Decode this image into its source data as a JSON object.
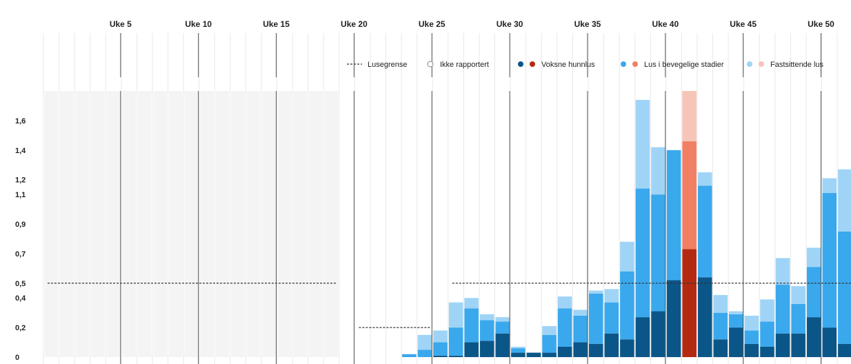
{
  "chart_data": {
    "type": "bar",
    "stacked": true,
    "title": "",
    "xlabel": "",
    "ylabel": "",
    "week_ticks": [
      {
        "week": 5,
        "label": "Uke 5"
      },
      {
        "week": 10,
        "label": "Uke 10"
      },
      {
        "week": 15,
        "label": "Uke 15"
      },
      {
        "week": 20,
        "label": "Uke 20"
      },
      {
        "week": 25,
        "label": "Uke 25"
      },
      {
        "week": 30,
        "label": "Uke 30"
      },
      {
        "week": 35,
        "label": "Uke 35"
      },
      {
        "week": 40,
        "label": "Uke 40"
      },
      {
        "week": 45,
        "label": "Uke 45"
      },
      {
        "week": 50,
        "label": "Uke 50"
      }
    ],
    "y_ticks": [
      {
        "value": 0,
        "label": "0"
      },
      {
        "value": 0.2,
        "label": "0,2"
      },
      {
        "value": 0.4,
        "label": "0,4"
      },
      {
        "value": 0.5,
        "label": "0,5"
      },
      {
        "value": 0.7,
        "label": "0,7"
      },
      {
        "value": 0.9,
        "label": "0,9"
      },
      {
        "value": 1.1,
        "label": "1,1"
      },
      {
        "value": 1.2,
        "label": "1,2"
      },
      {
        "value": 1.4,
        "label": "1,4"
      },
      {
        "value": 1.6,
        "label": "1,6"
      }
    ],
    "ylim": [
      0,
      1.8
    ],
    "weeks": [
      1,
      52
    ],
    "not_reported_weeks": [
      1,
      2,
      3,
      4,
      5,
      6,
      7,
      8,
      9,
      10,
      11,
      12,
      13,
      14,
      15,
      16,
      17,
      18,
      19
    ],
    "legend_position": "top-right",
    "legend": [
      {
        "key": "lusegrense",
        "label": "Lusegrense"
      },
      {
        "key": "ikke_rapportert",
        "label": "Ikke rapportert"
      },
      {
        "key": "voksne",
        "label": "Voksne hunnlus"
      },
      {
        "key": "bevegelige",
        "label": "Lus i bevegelige stadier"
      },
      {
        "key": "fastsittende",
        "label": "Fastsittende lus"
      }
    ],
    "colors": {
      "voksne": "#0b5688",
      "bevegelige": "#3aa8ec",
      "fastsittende": "#9fd4f7",
      "voksne_over": "#b32a10",
      "bevegelige_over": "#f07f63",
      "fastsittende_over": "#f6c5b8",
      "not_reported": "#f4f4f4",
      "grid": "#e8e8e8",
      "threshold": "#333333"
    },
    "thresholds": [
      {
        "from_week": 1,
        "to_week": 19,
        "value": 0.5
      },
      {
        "from_week": 21,
        "to_week": 25,
        "value": 0.2
      },
      {
        "from_week": 27,
        "to_week": 52,
        "value": 0.5
      }
    ],
    "weeks_data": [
      {
        "week": 24,
        "voksne": 0,
        "bevegelige": 0.02,
        "fastsittende": 0,
        "over": false
      },
      {
        "week": 25,
        "voksne": 0,
        "bevegelige": 0.05,
        "fastsittende": 0.1,
        "over": false
      },
      {
        "week": 26,
        "voksne": 0.01,
        "bevegelige": 0.09,
        "fastsittende": 0.08,
        "over": false
      },
      {
        "week": 27,
        "voksne": 0.01,
        "bevegelige": 0.19,
        "fastsittende": 0.17,
        "over": false
      },
      {
        "week": 28,
        "voksne": 0.1,
        "bevegelige": 0.23,
        "fastsittende": 0.07,
        "over": false
      },
      {
        "week": 29,
        "voksne": 0.11,
        "bevegelige": 0.14,
        "fastsittende": 0.04,
        "over": false
      },
      {
        "week": 30,
        "voksne": 0.16,
        "bevegelige": 0.08,
        "fastsittende": 0.03,
        "over": false
      },
      {
        "week": 31,
        "voksne": 0.03,
        "bevegelige": 0.03,
        "fastsittende": 0.01,
        "over": false
      },
      {
        "week": 32,
        "voksne": 0.03,
        "bevegelige": 0,
        "fastsittende": 0,
        "over": false
      },
      {
        "week": 33,
        "voksne": 0.03,
        "bevegelige": 0.12,
        "fastsittende": 0.06,
        "over": false
      },
      {
        "week": 34,
        "voksne": 0.07,
        "bevegelige": 0.26,
        "fastsittende": 0.08,
        "over": false
      },
      {
        "week": 35,
        "voksne": 0.1,
        "bevegelige": 0.18,
        "fastsittende": 0.04,
        "over": false
      },
      {
        "week": 36,
        "voksne": 0.09,
        "bevegelige": 0.34,
        "fastsittende": 0.02,
        "over": false
      },
      {
        "week": 37,
        "voksne": 0.16,
        "bevegelige": 0.21,
        "fastsittende": 0.09,
        "over": false
      },
      {
        "week": 38,
        "voksne": 0.12,
        "bevegelige": 0.46,
        "fastsittende": 0.2,
        "over": false
      },
      {
        "week": 39,
        "voksne": 0.27,
        "bevegelige": 0.87,
        "fastsittende": 0.6,
        "over": false
      },
      {
        "week": 40,
        "voksne": 0.31,
        "bevegelige": 0.79,
        "fastsittende": 0.32,
        "over": false
      },
      {
        "week": 41,
        "voksne": 0.52,
        "bevegelige": 0.88,
        "fastsittende": 0,
        "over": false
      },
      {
        "week": 42,
        "voksne": 0.73,
        "bevegelige": 0.73,
        "fastsittende": 0.34,
        "over": true
      },
      {
        "week": 43,
        "voksne": 0.54,
        "bevegelige": 0.62,
        "fastsittende": 0.09,
        "over": false
      },
      {
        "week": 44,
        "voksne": 0.12,
        "bevegelige": 0.18,
        "fastsittende": 0.12,
        "over": false
      },
      {
        "week": 45,
        "voksne": 0.2,
        "bevegelige": 0.09,
        "fastsittende": 0.02,
        "over": false
      },
      {
        "week": 46,
        "voksne": 0.09,
        "bevegelige": 0.09,
        "fastsittende": 0.1,
        "over": false
      },
      {
        "week": 47,
        "voksne": 0.07,
        "bevegelige": 0.17,
        "fastsittende": 0.15,
        "over": false
      },
      {
        "week": 48,
        "voksne": 0.16,
        "bevegelige": 0.33,
        "fastsittende": 0.18,
        "over": false
      },
      {
        "week": 49,
        "voksne": 0.16,
        "bevegelige": 0.2,
        "fastsittende": 0.12,
        "over": false
      },
      {
        "week": 50,
        "voksne": 0.27,
        "bevegelige": 0.34,
        "fastsittende": 0.13,
        "over": false
      },
      {
        "week": 51,
        "voksne": 0.2,
        "bevegelige": 0.91,
        "fastsittende": 0.1,
        "over": false
      },
      {
        "week": 52,
        "voksne": 0.09,
        "bevegelige": 0.76,
        "fastsittende": 0.42,
        "over": false
      }
    ]
  }
}
